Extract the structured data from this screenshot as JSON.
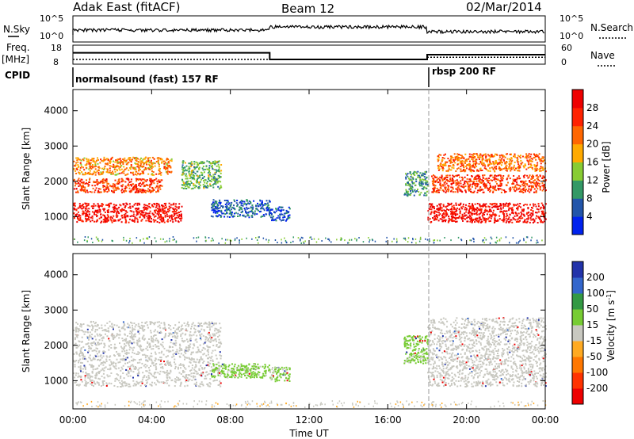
{
  "header": {
    "station": "Adak East (fitACF)",
    "beam": "Beam 12",
    "date": "02/Mar/2014"
  },
  "noise_panel": {
    "left_label": "N.Sky",
    "right_label": "N.Search",
    "left_ticks": [
      "10^5",
      "10^0"
    ],
    "right_ticks": [
      "10^5",
      "10^0"
    ]
  },
  "freq_panel": {
    "left_label": "Freq.",
    "left_unit": "[MHz]",
    "left_ticks": [
      "18",
      "8"
    ],
    "right_label": "Nave",
    "right_ticks": [
      "60",
      "0"
    ],
    "freq_segments": [
      {
        "start_hour": 0,
        "end_hour": 10,
        "freq_mhz": 14
      },
      {
        "start_hour": 10,
        "end_hour": 18,
        "freq_mhz": 10.5
      },
      {
        "start_hour": 18,
        "end_hour": 24,
        "freq_mhz": 13
      }
    ],
    "nave_segments": [
      {
        "start_hour": 0,
        "end_hour": 10,
        "nave": 15
      },
      {
        "start_hour": 18,
        "end_hour": 24,
        "nave": 22
      }
    ]
  },
  "cpid_panel": {
    "label": "CPID",
    "modes": [
      {
        "text": "normalsound (fast) 157 RF",
        "start_hour": 0
      },
      {
        "text": "rbsp 200 RF",
        "start_hour": 18
      }
    ]
  },
  "chart_data": [
    {
      "type": "heatmap",
      "title": "",
      "xlabel": "",
      "ylabel": "Slant Range [km]",
      "x_ticks": [
        "00:00",
        "04:00",
        "08:00",
        "12:00",
        "16:00",
        "20:00",
        "00:00"
      ],
      "xlim_hours": [
        0,
        24
      ],
      "ylim": [
        200,
        4600
      ],
      "y_ticks": [
        1000,
        2000,
        3000,
        4000
      ],
      "colorbar": {
        "label": "Power [dB]",
        "ticks": [
          4,
          8,
          12,
          16,
          20,
          24,
          28
        ],
        "colors": [
          "#0022ee",
          "#2255aa",
          "#339966",
          "#88cc33",
          "#ffaa00",
          "#ff6600",
          "#ff2200",
          "#ee0000"
        ]
      },
      "echo_regions": [
        {
          "hours": [
            0.0,
            5.5
          ],
          "range_km": [
            850,
            1400
          ],
          "power_db": 29
        },
        {
          "hours": [
            0.0,
            4.5
          ],
          "range_km": [
            1700,
            2100
          ],
          "power_db": 25
        },
        {
          "hours": [
            0.0,
            5.0
          ],
          "range_km": [
            2200,
            2700
          ],
          "power_db": 20
        },
        {
          "hours": [
            5.5,
            7.5
          ],
          "range_km": [
            1800,
            2600
          ],
          "power_db": 12
        },
        {
          "hours": [
            7.0,
            10.0
          ],
          "range_km": [
            1000,
            1500
          ],
          "power_db": 6
        },
        {
          "hours": [
            10.0,
            11.0
          ],
          "range_km": [
            900,
            1300
          ],
          "power_db": 5
        },
        {
          "hours": [
            16.8,
            18.0
          ],
          "range_km": [
            1600,
            2300
          ],
          "power_db": 10
        },
        {
          "hours": [
            18.0,
            24.0
          ],
          "range_km": [
            850,
            1400
          ],
          "power_db": 29
        },
        {
          "hours": [
            18.2,
            24.0
          ],
          "range_km": [
            1700,
            2200
          ],
          "power_db": 25
        },
        {
          "hours": [
            18.5,
            24.0
          ],
          "range_km": [
            2300,
            2800
          ],
          "power_db": 22
        }
      ]
    },
    {
      "type": "heatmap",
      "title": "",
      "xlabel": "Time UT",
      "ylabel": "Slant Range [km]",
      "x_ticks": [
        "00:00",
        "04:00",
        "08:00",
        "12:00",
        "16:00",
        "20:00",
        "00:00"
      ],
      "xlim_hours": [
        0,
        24
      ],
      "ylim": [
        200,
        4600
      ],
      "y_ticks": [
        1000,
        2000,
        3000,
        4000
      ],
      "colorbar": {
        "label_main": "Velocity",
        "label_unit": "[m s",
        "label_exp": "-1",
        "label_close": "]",
        "ticks": [
          200,
          100,
          50,
          15,
          -15,
          -50,
          -100,
          -200
        ],
        "colors": [
          "#2233aa",
          "#3366cc",
          "#339944",
          "#77cc33",
          "#c8c8c0",
          "#ffaa22",
          "#ff7700",
          "#ff3300",
          "#ee0000"
        ]
      },
      "echo_regions": [
        {
          "hours": [
            0.0,
            7.5
          ],
          "range_km": [
            850,
            2700
          ],
          "velocity_ms": 0
        },
        {
          "hours": [
            7.0,
            10.0
          ],
          "range_km": [
            1100,
            1500
          ],
          "velocity_ms": 40
        },
        {
          "hours": [
            10.0,
            11.0
          ],
          "range_km": [
            1000,
            1400
          ],
          "velocity_ms": 40
        },
        {
          "hours": [
            16.8,
            18.0
          ],
          "range_km": [
            1500,
            2300
          ],
          "velocity_ms": 40
        },
        {
          "hours": [
            18.0,
            24.0
          ],
          "range_km": [
            850,
            2800
          ],
          "velocity_ms": 0
        }
      ]
    }
  ]
}
